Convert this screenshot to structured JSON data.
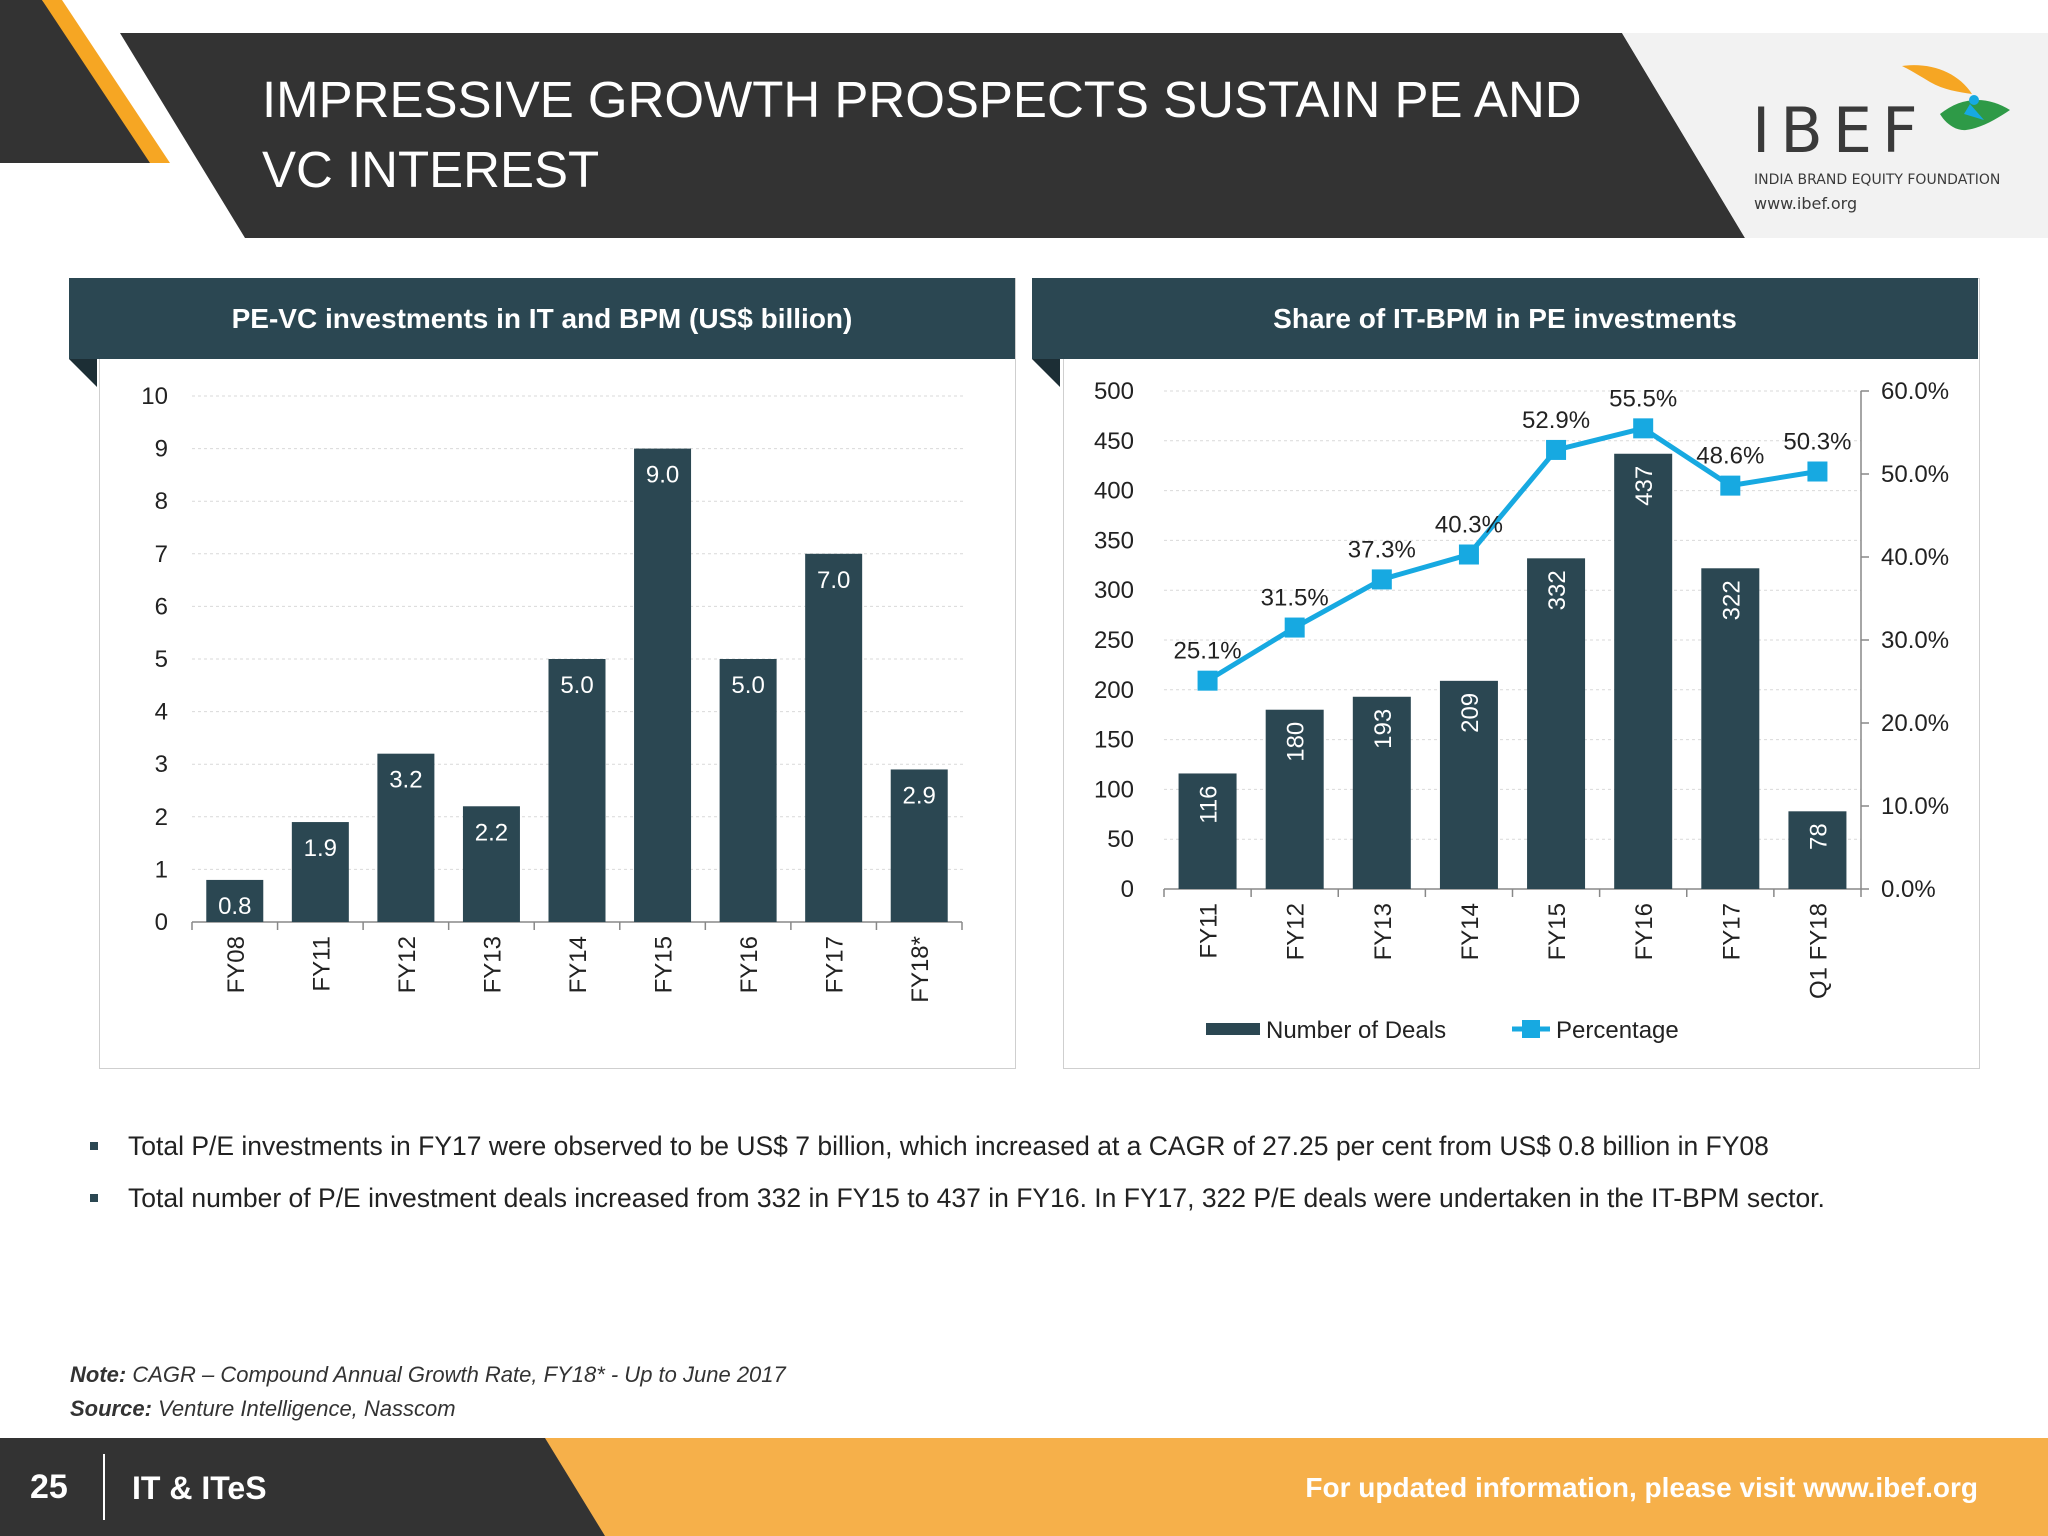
{
  "header": {
    "title_line1": "IMPRESSIVE GROWTH PROSPECTS SUSTAIN PE AND",
    "title_line2": "VC INTEREST",
    "logo_name": "IBEF",
    "logo_tagline": "INDIA BRAND EQUITY FOUNDATION",
    "logo_url": "www.ibef.org",
    "colors": {
      "dark": "#333333",
      "accent": "#f6a623",
      "teal": "#2b4752",
      "line": "#17a9e1"
    }
  },
  "chart_data": [
    {
      "type": "bar",
      "title": "PE-VC investments in IT and BPM (US$ billion)",
      "categories": [
        "FY08",
        "FY11",
        "FY12",
        "FY13",
        "FY14",
        "FY15",
        "FY16",
        "FY17",
        "FY18*"
      ],
      "values": [
        0.8,
        1.9,
        3.2,
        2.2,
        5.0,
        9.0,
        5.0,
        7.0,
        2.9
      ],
      "data_labels": [
        "0.8",
        "1.9",
        "3.2",
        "2.2",
        "5.0",
        "9.0",
        "5.0",
        "7.0",
        "2.9"
      ],
      "ylim": [
        0,
        10
      ],
      "yticks": [
        "0",
        "1",
        "2",
        "3",
        "4",
        "5",
        "6",
        "7",
        "8",
        "9",
        "10"
      ],
      "grid": true,
      "bar_color": "#2b4752"
    },
    {
      "type": "bar",
      "title": "Share of IT-BPM in PE investments",
      "categories": [
        "FY11",
        "FY12",
        "FY13",
        "FY14",
        "FY15",
        "FY16",
        "FY17",
        "Q1 FY18"
      ],
      "series": [
        {
          "name": "Number of Deals",
          "type": "bar",
          "axis": "left",
          "values": [
            116,
            180,
            193,
            209,
            332,
            437,
            322,
            78
          ],
          "labels": [
            "116",
            "180",
            "193",
            "209",
            "332",
            "437",
            "322",
            "78"
          ],
          "color": "#2b4752"
        },
        {
          "name": "Percentage",
          "type": "line",
          "axis": "right",
          "values": [
            25.1,
            31.5,
            37.3,
            40.3,
            52.9,
            55.5,
            48.6,
            50.3
          ],
          "labels": [
            "25.1%",
            "31.5%",
            "37.3%",
            "40.3%",
            "52.9%",
            "55.5%",
            "48.6%",
            "50.3%"
          ],
          "color": "#17a9e1"
        }
      ],
      "ylim_left": [
        0,
        500
      ],
      "yticks_left": [
        "0",
        "50",
        "100",
        "150",
        "200",
        "250",
        "300",
        "350",
        "400",
        "450",
        "500"
      ],
      "ylim_right": [
        0,
        60
      ],
      "yticks_right": [
        "0.0%",
        "10.0%",
        "20.0%",
        "30.0%",
        "40.0%",
        "50.0%",
        "60.0%"
      ],
      "grid": true,
      "legend": "bottom"
    }
  ],
  "bullets": [
    "Total P/E investments in FY17 were observed to be US$ 7 billion, which increased at a CAGR of 27.25 per cent from US$ 0.8 billion in FY08",
    "Total number of P/E investment deals increased from 332 in FY15 to 437 in FY16. In FY17, 322 P/E deals were undertaken in the IT-BPM sector."
  ],
  "note": {
    "note_label": "Note:",
    "note_text": " CAGR – Compound Annual Growth Rate, FY18* - Up to June 2017",
    "source_label": "Source:",
    "source_text": " Venture Intelligence, Nasscom"
  },
  "footer": {
    "page_number": "25",
    "section": "IT & ITeS",
    "link_text": "For updated information, please visit www.ibef.org"
  }
}
